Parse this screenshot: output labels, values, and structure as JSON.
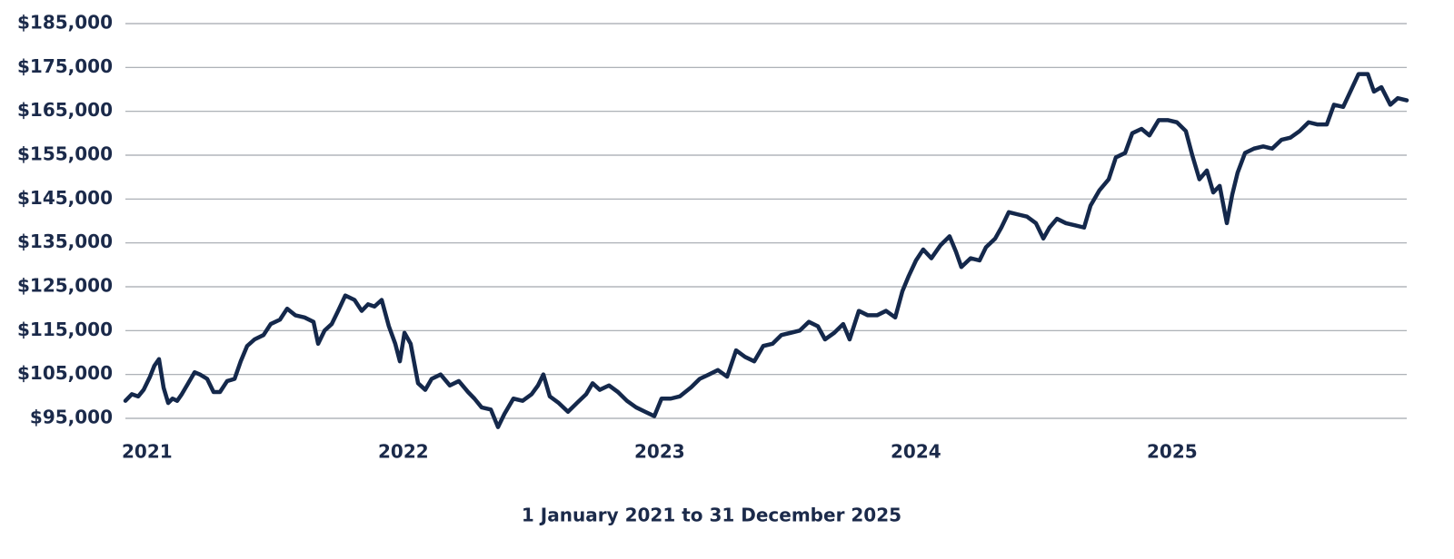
{
  "chart_data": {
    "type": "line",
    "x_label": "1 January 2021 to 31 December 2025",
    "color": "#14284b",
    "grid": true,
    "xlim": [
      2021,
      2026
    ],
    "xticks": [
      2021,
      2022,
      2023,
      2024,
      2025
    ],
    "ylim": [
      95000,
      185000
    ],
    "yticks": [
      {
        "value": 95000,
        "label": "$95,000"
      },
      {
        "value": 105000,
        "label": "$105,000"
      },
      {
        "value": 115000,
        "label": "$115,000"
      },
      {
        "value": 125000,
        "label": "$125,000"
      },
      {
        "value": 135000,
        "label": "$135,000"
      },
      {
        "value": 145000,
        "label": "$145,000"
      },
      {
        "value": 155000,
        "label": "$155,000"
      },
      {
        "value": 165000,
        "label": "$165,000"
      },
      {
        "value": 175000,
        "label": "$175,000"
      },
      {
        "value": 185000,
        "label": "$185,000"
      }
    ],
    "x": [
      2021.0,
      2021.025,
      2021.05,
      2021.071,
      2021.096,
      2021.113,
      2021.131,
      2021.149,
      2021.167,
      2021.184,
      2021.202,
      2021.22,
      2021.245,
      2021.27,
      2021.291,
      2021.319,
      2021.344,
      2021.369,
      2021.397,
      2021.426,
      2021.45,
      2021.475,
      2021.504,
      2021.539,
      2021.567,
      2021.603,
      2021.631,
      2021.663,
      2021.699,
      2021.734,
      2021.752,
      2021.777,
      2021.805,
      2021.83,
      2021.858,
      2021.894,
      2021.922,
      2021.947,
      2021.972,
      2022.0,
      2022.028,
      2022.053,
      2022.071,
      2022.089,
      2022.113,
      2022.142,
      2022.17,
      2022.195,
      2022.23,
      2022.266,
      2022.301,
      2022.337,
      2022.362,
      2022.39,
      2022.426,
      2022.454,
      2022.479,
      2022.514,
      2022.55,
      2022.585,
      2022.61,
      2022.631,
      2022.656,
      2022.691,
      2022.727,
      2022.762,
      2022.798,
      2022.823,
      2022.851,
      2022.887,
      2022.922,
      2022.957,
      2022.993,
      2023.028,
      2023.064,
      2023.092,
      2023.128,
      2023.163,
      2023.206,
      2023.241,
      2023.277,
      2023.312,
      2023.348,
      2023.383,
      2023.418,
      2023.454,
      2023.489,
      2023.525,
      2023.56,
      2023.596,
      2023.631,
      2023.667,
      2023.702,
      2023.73,
      2023.766,
      2023.801,
      2023.826,
      2023.862,
      2023.897,
      2023.933,
      2023.968,
      2024.004,
      2024.032,
      2024.057,
      2024.085,
      2024.113,
      2024.145,
      2024.181,
      2024.216,
      2024.241,
      2024.262,
      2024.298,
      2024.333,
      2024.358,
      2024.394,
      2024.418,
      2024.447,
      2024.482,
      2024.518,
      2024.553,
      2024.582,
      2024.606,
      2024.635,
      2024.67,
      2024.706,
      2024.741,
      2024.766,
      2024.801,
      2024.837,
      2024.865,
      2024.901,
      2024.929,
      2024.965,
      2024.996,
      2025.032,
      2025.067,
      2025.103,
      2025.138,
      2025.163,
      2025.191,
      2025.22,
      2025.245,
      2025.27,
      2025.298,
      2025.319,
      2025.34,
      2025.369,
      2025.404,
      2025.44,
      2025.475,
      2025.511,
      2025.546,
      2025.582,
      2025.617,
      2025.652,
      2025.688,
      2025.716,
      2025.752,
      2025.78,
      2025.812,
      2025.848,
      2025.872,
      2025.901,
      2025.936,
      2025.965,
      2026.0
    ],
    "values": [
      99000,
      100500,
      100000,
      101500,
      104500,
      107000,
      108500,
      102000,
      98500,
      99500,
      99000,
      100500,
      103000,
      105500,
      105000,
      104000,
      101000,
      101000,
      103500,
      104000,
      108000,
      111500,
      113000,
      114000,
      116500,
      117500,
      120000,
      118500,
      118000,
      117000,
      112000,
      115000,
      116500,
      119500,
      123000,
      122000,
      119500,
      121000,
      120500,
      122000,
      116000,
      112000,
      108000,
      114500,
      112000,
      103000,
      101500,
      104000,
      105000,
      102500,
      103500,
      101000,
      99500,
      97500,
      97000,
      93000,
      96000,
      99500,
      99000,
      100500,
      102500,
      105000,
      100000,
      98500,
      96500,
      98500,
      100500,
      103000,
      101500,
      102500,
      101000,
      99000,
      97500,
      96500,
      95500,
      99500,
      99500,
      100000,
      102000,
      104000,
      105000,
      106000,
      104500,
      110500,
      109000,
      108000,
      111500,
      112000,
      114000,
      114500,
      115000,
      117000,
      116000,
      113000,
      114500,
      116500,
      113000,
      119500,
      118500,
      118500,
      119500,
      118000,
      124000,
      127500,
      131000,
      133500,
      131500,
      134500,
      136500,
      133000,
      129500,
      131500,
      131000,
      134000,
      136000,
      138500,
      142000,
      141500,
      141000,
      139500,
      136000,
      138500,
      140500,
      139500,
      139000,
      138500,
      143500,
      147000,
      149500,
      154500,
      155500,
      160000,
      161000,
      159500,
      163000,
      163000,
      162500,
      160500,
      155000,
      149500,
      151500,
      146500,
      148000,
      139500,
      146000,
      151000,
      155500,
      156500,
      157000,
      156500,
      158500,
      159000,
      160500,
      162500,
      162000,
      162000,
      166500,
      166000,
      169500,
      173500,
      173500,
      169500,
      170500,
      166500,
      168000,
      167500
    ]
  }
}
